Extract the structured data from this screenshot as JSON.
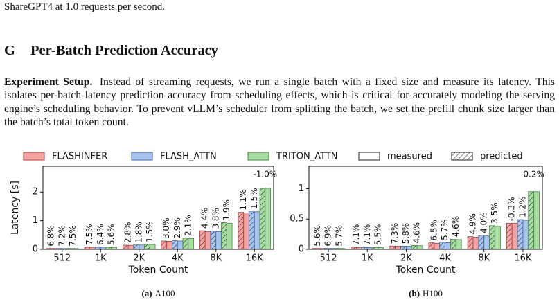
{
  "header_line": "ShareGPT4 at 1.0 requests per second.",
  "section": {
    "number": "G",
    "title": "Per-Batch Prediction Accuracy"
  },
  "paragraph": {
    "lead": "Experiment Setup.",
    "text": "Instead of streaming requests, we run a single batch with a fixed size and measure its latency. This isolates per-batch latency prediction accuracy from scheduling effects, which is critical for accurately modeling the serving engine’s scheduling behavior. To prevent vLLM’s scheduler from splitting the batch, we set the prefill chunk size larger than the batch’s total token count."
  },
  "legend_styles": [
    "measured",
    "predicted"
  ],
  "chart_data": [
    {
      "type": "bar",
      "subfig": "(a)",
      "title": "A100",
      "xlabel": "Token Count",
      "ylabel": "Latency [s]",
      "categories": [
        "512",
        "1K",
        "2K",
        "4K",
        "8K",
        "16K"
      ],
      "ylim": [
        0,
        2.9
      ],
      "yticks": [
        0,
        1,
        2
      ],
      "series": [
        {
          "name": "FLASHINFER",
          "color": "#f4a3a3",
          "edgecolor": "#b83a3a",
          "values": [
            0.03,
            0.07,
            0.14,
            0.28,
            0.62,
            1.27
          ],
          "predicted": [
            0.032,
            0.075,
            0.144,
            0.29,
            0.65,
            1.29
          ],
          "error_labels": [
            "6.8%",
            "7.5%",
            "2.8%",
            "3.0%",
            "4.4%",
            "1.1%"
          ]
        },
        {
          "name": "FLASH_ATTN",
          "color": "#a9c4ec",
          "edgecolor": "#3c63a8",
          "values": [
            0.03,
            0.07,
            0.15,
            0.29,
            0.62,
            1.31
          ],
          "predicted": [
            0.032,
            0.074,
            0.153,
            0.3,
            0.64,
            1.33
          ],
          "error_labels": [
            "7.2%",
            "6.4%",
            "1.8%",
            "2.9%",
            "3.8%",
            "1.5%"
          ]
        },
        {
          "name": "TRITON_ATTN",
          "color": "#a8dca2",
          "edgecolor": "#3b8a3b",
          "values": [
            0.03,
            0.07,
            0.17,
            0.38,
            0.91,
            2.13
          ],
          "predicted": [
            0.032,
            0.074,
            0.173,
            0.39,
            0.93,
            2.11
          ],
          "error_labels": [
            "7.5%",
            "5.6%",
            "1.5%",
            "2.1%",
            "1.9%",
            "-1.0%"
          ]
        }
      ]
    },
    {
      "type": "bar",
      "subfig": "(b)",
      "title": "H100",
      "xlabel": "Token Count",
      "categories": [
        "512",
        "1K",
        "2K",
        "4K",
        "8K",
        "16K"
      ],
      "ylim": [
        0,
        1.37
      ],
      "yticks": [
        0,
        0.5,
        1
      ],
      "series": [
        {
          "name": "FLASHINFER",
          "color": "#f4a3a3",
          "edgecolor": "#b83a3a",
          "values": [
            0.015,
            0.03,
            0.05,
            0.1,
            0.2,
            0.43
          ],
          "predicted": [
            0.016,
            0.032,
            0.054,
            0.107,
            0.21,
            0.43
          ],
          "error_labels": [
            "5.6%",
            "7.1%",
            "7.3%",
            "6.5%",
            "4.9%",
            "-0.3%"
          ]
        },
        {
          "name": "FLASH_ATTN",
          "color": "#a9c4ec",
          "edgecolor": "#3c63a8",
          "values": [
            0.015,
            0.03,
            0.05,
            0.11,
            0.22,
            0.48
          ],
          "predicted": [
            0.016,
            0.032,
            0.053,
            0.116,
            0.23,
            0.49
          ],
          "error_labels": [
            "6.9%",
            "7.1%",
            "5.8%",
            "5.7%",
            "4.0%",
            "1.2%"
          ]
        },
        {
          "name": "TRITON_ATTN",
          "color": "#a8dca2",
          "edgecolor": "#3b8a3b",
          "values": [
            0.015,
            0.03,
            0.06,
            0.16,
            0.38,
            0.95
          ],
          "predicted": [
            0.016,
            0.032,
            0.063,
            0.167,
            0.39,
            0.95
          ],
          "error_labels": [
            "5.7%",
            "5.5%",
            "4.6%",
            "4.6%",
            "3.5%",
            "0.2%"
          ]
        }
      ]
    }
  ]
}
